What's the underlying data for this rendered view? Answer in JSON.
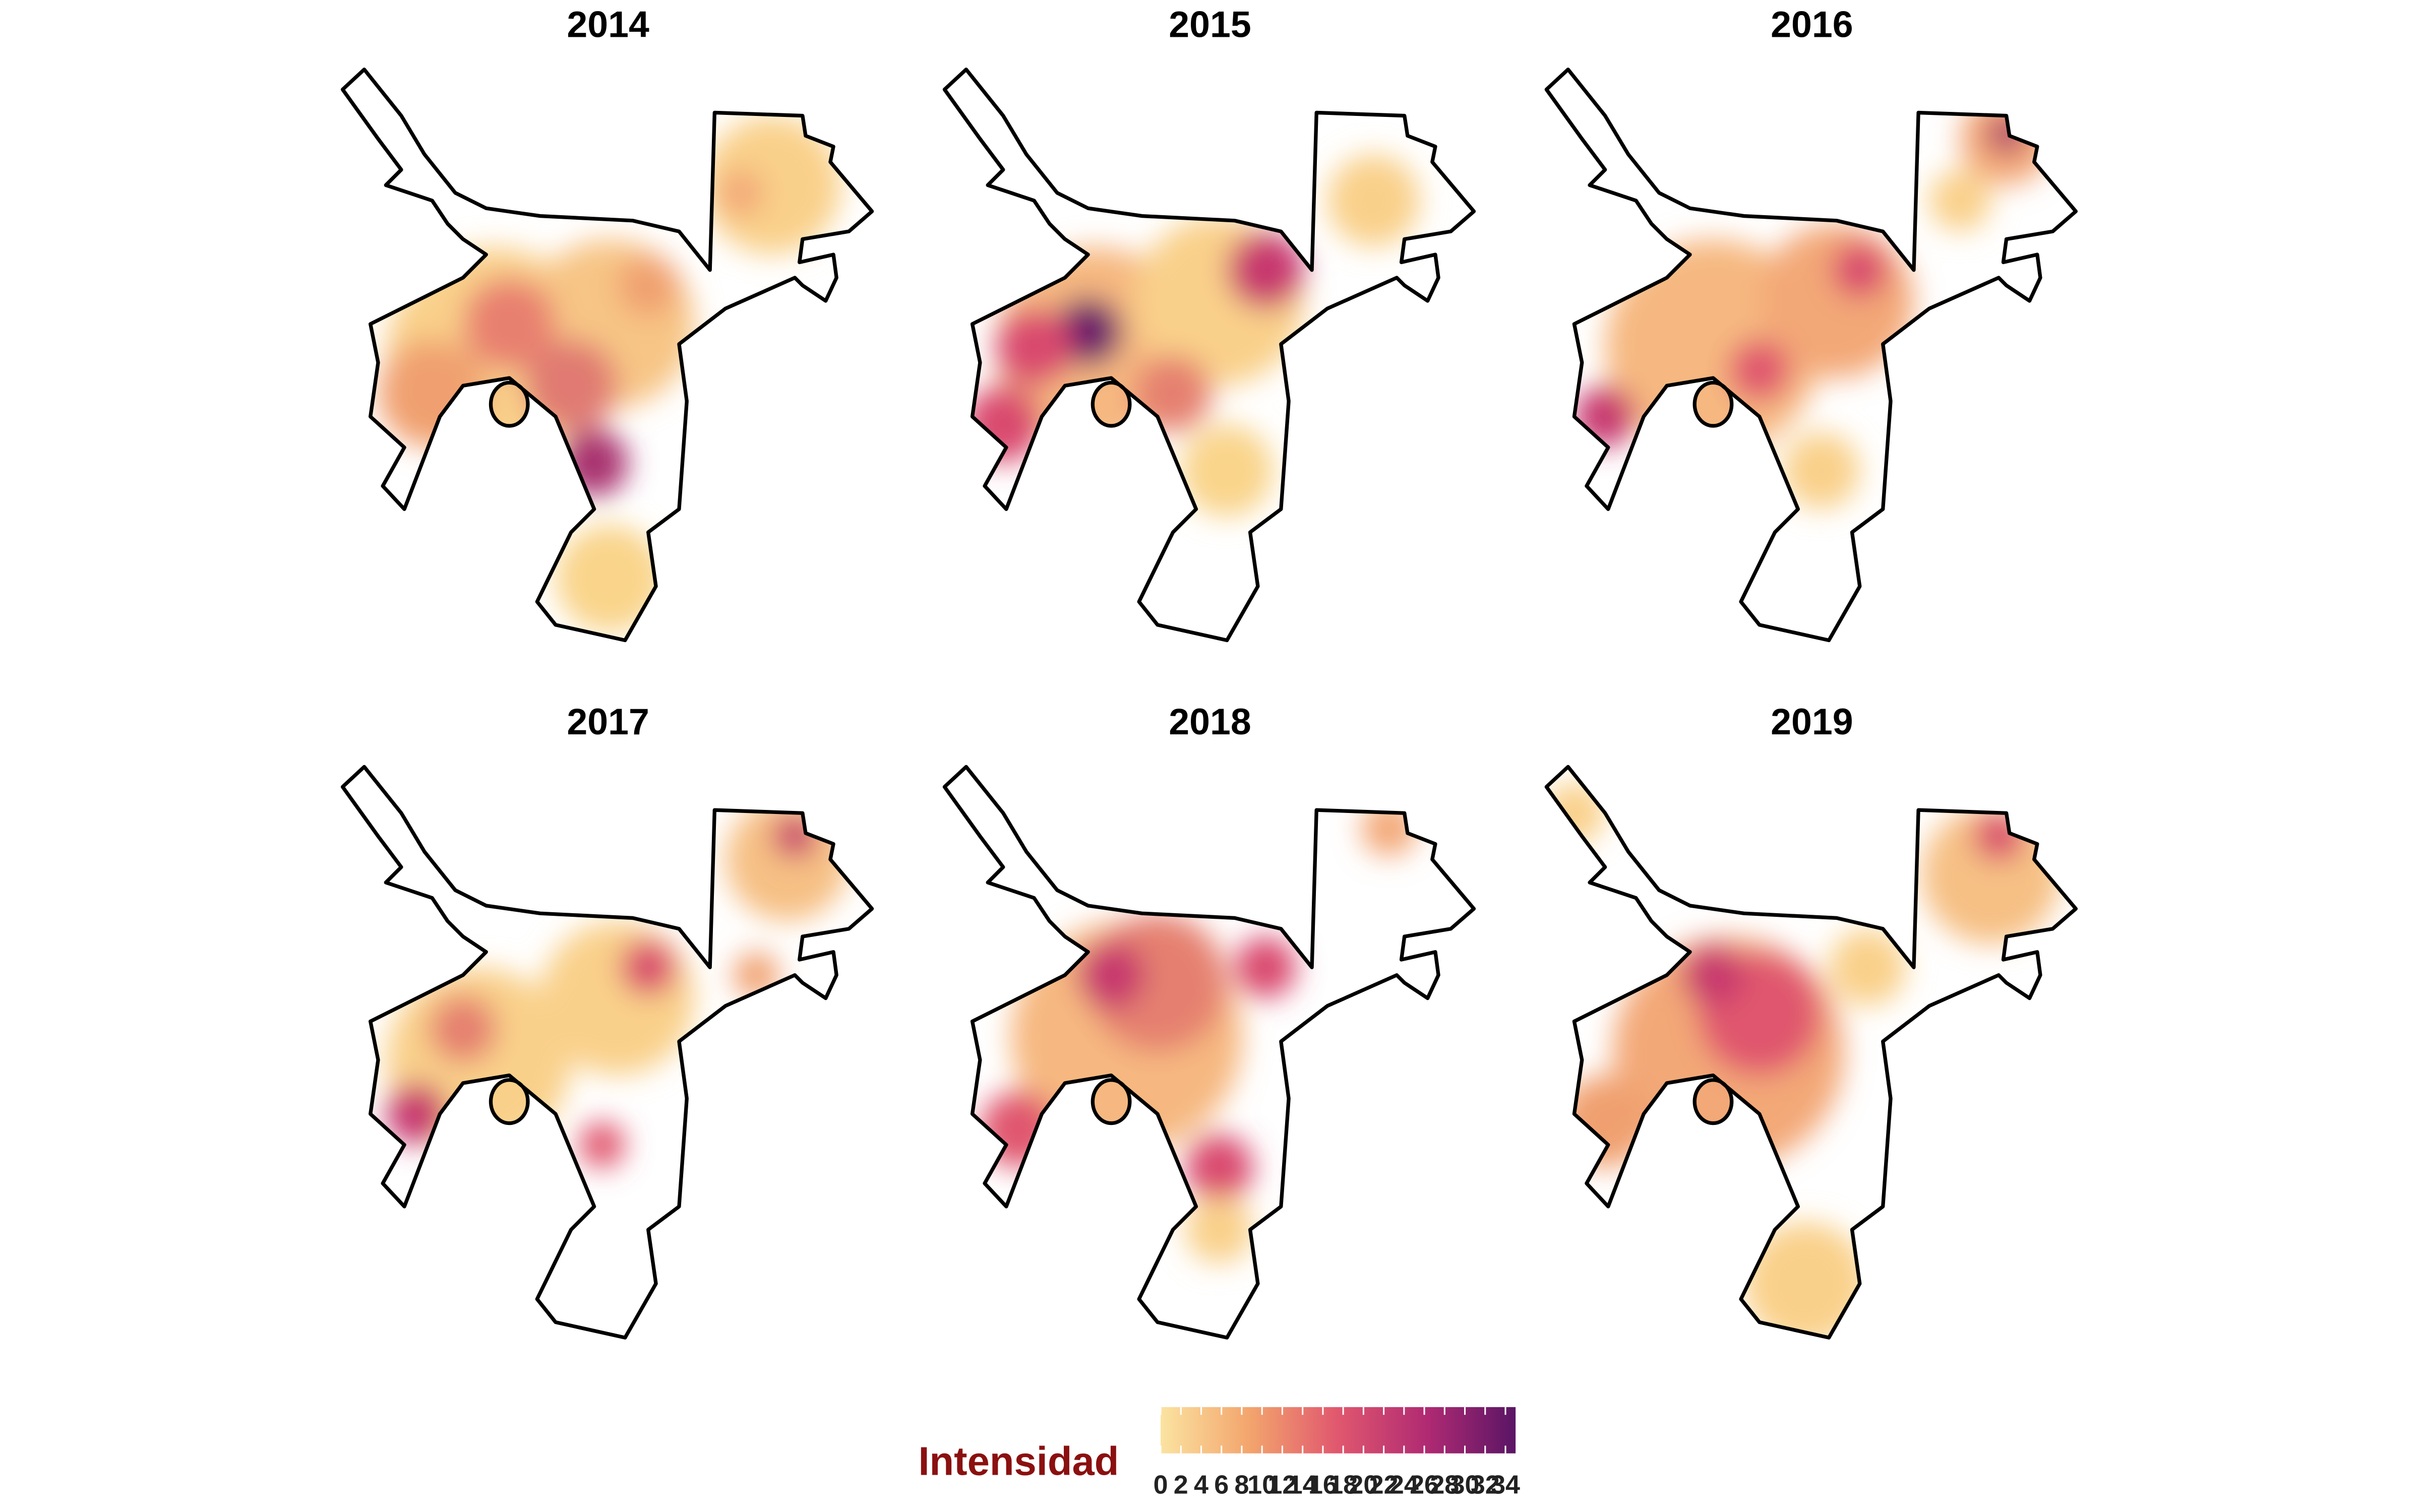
{
  "panels": [
    {
      "title": "2014"
    },
    {
      "title": "2015"
    },
    {
      "title": "2016"
    },
    {
      "title": "2017"
    },
    {
      "title": "2018"
    },
    {
      "title": "2019"
    }
  ],
  "legend": {
    "title": "Intensidad",
    "range": [
      0,
      35
    ],
    "ticks": [
      0,
      2,
      4,
      6,
      8,
      10,
      12,
      14,
      16,
      18,
      20,
      22,
      24,
      26,
      28,
      30,
      32,
      34
    ],
    "colors": [
      "#fbe3a1",
      "#f3a56d",
      "#e0576e",
      "#b02a73",
      "#5a1565"
    ]
  }
}
